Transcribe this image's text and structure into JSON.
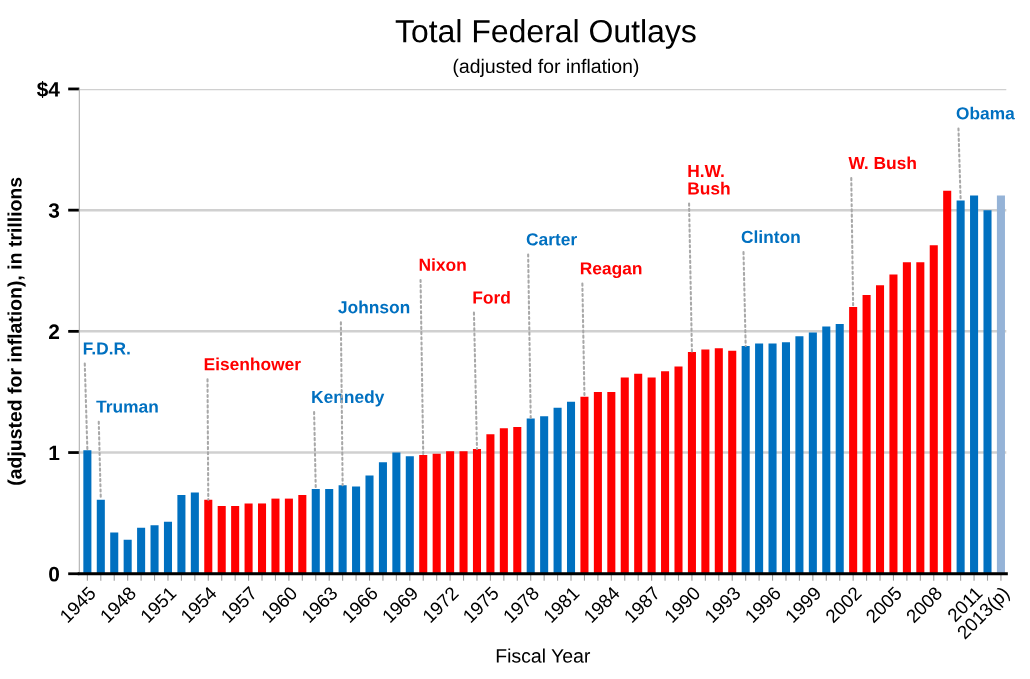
{
  "chart_data": {
    "type": "bar",
    "title": "Total Federal Outlays",
    "subtitle": "(adjusted for inflation)",
    "xlabel": "Fiscal Year",
    "ylabel": "(adjusted for inflation), in trillions",
    "x": [
      1945,
      1946,
      1947,
      1948,
      1949,
      1950,
      1951,
      1952,
      1953,
      1954,
      1955,
      1956,
      1957,
      1958,
      1959,
      1960,
      1961,
      1962,
      1963,
      1964,
      1965,
      1966,
      1967,
      1968,
      1969,
      1970,
      1971,
      1972,
      1973,
      1974,
      1975,
      1976,
      1977,
      1978,
      1979,
      1980,
      1981,
      1982,
      1983,
      1984,
      1985,
      1986,
      1987,
      1988,
      1989,
      1990,
      1991,
      1992,
      1993,
      1994,
      1995,
      1996,
      1997,
      1998,
      1999,
      2000,
      2001,
      2002,
      2003,
      2004,
      2005,
      2006,
      2007,
      2008,
      2009,
      2010,
      2011,
      2012,
      2013
    ],
    "values": [
      1.02,
      0.61,
      0.34,
      0.28,
      0.38,
      0.4,
      0.43,
      0.65,
      0.67,
      0.61,
      0.56,
      0.56,
      0.58,
      0.58,
      0.62,
      0.62,
      0.65,
      0.7,
      0.7,
      0.73,
      0.72,
      0.81,
      0.92,
      1.0,
      0.97,
      0.98,
      0.99,
      1.01,
      1.01,
      1.03,
      1.15,
      1.2,
      1.21,
      1.28,
      1.3,
      1.37,
      1.42,
      1.46,
      1.5,
      1.5,
      1.62,
      1.65,
      1.62,
      1.67,
      1.71,
      1.83,
      1.85,
      1.86,
      1.84,
      1.88,
      1.9,
      1.9,
      1.91,
      1.96,
      1.99,
      2.04,
      2.06,
      2.2,
      2.3,
      2.38,
      2.47,
      2.57,
      2.57,
      2.71,
      3.16,
      3.08,
      3.12,
      3.0,
      3.12
    ],
    "colors": [
      "#0070c0",
      "#0070c0",
      "#0070c0",
      "#0070c0",
      "#0070c0",
      "#0070c0",
      "#0070c0",
      "#0070c0",
      "#0070c0",
      "#ff0000",
      "#ff0000",
      "#ff0000",
      "#ff0000",
      "#ff0000",
      "#ff0000",
      "#ff0000",
      "#ff0000",
      "#0070c0",
      "#0070c0",
      "#0070c0",
      "#0070c0",
      "#0070c0",
      "#0070c0",
      "#0070c0",
      "#0070c0",
      "#ff0000",
      "#ff0000",
      "#ff0000",
      "#ff0000",
      "#ff0000",
      "#ff0000",
      "#ff0000",
      "#ff0000",
      "#0070c0",
      "#0070c0",
      "#0070c0",
      "#0070c0",
      "#ff0000",
      "#ff0000",
      "#ff0000",
      "#ff0000",
      "#ff0000",
      "#ff0000",
      "#ff0000",
      "#ff0000",
      "#ff0000",
      "#ff0000",
      "#ff0000",
      "#ff0000",
      "#0070c0",
      "#0070c0",
      "#0070c0",
      "#0070c0",
      "#0070c0",
      "#0070c0",
      "#0070c0",
      "#0070c0",
      "#ff0000",
      "#ff0000",
      "#ff0000",
      "#ff0000",
      "#ff0000",
      "#ff0000",
      "#ff0000",
      "#ff0000",
      "#0070c0",
      "#0070c0",
      "#0070c0",
      "#95b3d7"
    ],
    "xlim": [
      1944.4,
      2013.4
    ],
    "xticks": [
      1945,
      {
        "value": 1946,
        "label": null
      },
      {
        "value": 1947,
        "label": null
      },
      1948,
      {
        "value": 1949,
        "label": null
      },
      {
        "value": 1950,
        "label": null
      },
      1951,
      {
        "value": 1952,
        "label": null
      },
      {
        "value": 1953,
        "label": null
      },
      1954,
      {
        "value": 1955,
        "label": null
      },
      {
        "value": 1956,
        "label": null
      },
      1957,
      {
        "value": 1958,
        "label": null
      },
      {
        "value": 1959,
        "label": null
      },
      1960,
      {
        "value": 1961,
        "label": null
      },
      {
        "value": 1962,
        "label": null
      },
      1963,
      {
        "value": 1964,
        "label": null
      },
      {
        "value": 1965,
        "label": null
      },
      1966,
      {
        "value": 1967,
        "label": null
      },
      {
        "value": 1968,
        "label": null
      },
      1969,
      {
        "value": 1970,
        "label": null
      },
      {
        "value": 1971,
        "label": null
      },
      1972,
      {
        "value": 1973,
        "label": null
      },
      {
        "value": 1974,
        "label": null
      },
      1975,
      {
        "value": 1976,
        "label": null
      },
      {
        "value": 1977,
        "label": null
      },
      1978,
      {
        "value": 1979,
        "label": null
      },
      {
        "value": 1980,
        "label": null
      },
      1981,
      {
        "value": 1982,
        "label": null
      },
      {
        "value": 1983,
        "label": null
      },
      1984,
      {
        "value": 1985,
        "label": null
      },
      {
        "value": 1986,
        "label": null
      },
      1987,
      {
        "value": 1988,
        "label": null
      },
      {
        "value": 1989,
        "label": null
      },
      1990,
      {
        "value": 1991,
        "label": null
      },
      {
        "value": 1992,
        "label": null
      },
      1993,
      {
        "value": 1994,
        "label": null
      },
      {
        "value": 1995,
        "label": null
      },
      1996,
      {
        "value": 1997,
        "label": null
      },
      {
        "value": 1998,
        "label": null
      },
      1999,
      {
        "value": 2000,
        "label": null
      },
      {
        "value": 2001,
        "label": null
      },
      2002,
      {
        "value": 2003,
        "label": null
      },
      {
        "value": 2004,
        "label": null
      },
      2005,
      {
        "value": 2006,
        "label": null
      },
      {
        "value": 2007,
        "label": null
      },
      2008,
      {
        "value": 2009,
        "label": null
      },
      {
        "value": 2010,
        "label": null
      },
      2011,
      {
        "value": 2012,
        "label": null
      },
      {
        "value": 2013,
        "label": "2013(p)"
      }
    ],
    "ylim": [
      0,
      4
    ],
    "yticks": [
      0,
      1,
      2,
      3,
      {
        "value": 4,
        "label": "$4"
      }
    ],
    "grid": "y",
    "annotations": [
      {
        "text": "F.D.R.",
        "x": 1945,
        "y": 1.02
      },
      {
        "text": "Truman",
        "x": 1946,
        "y": 0.61
      },
      {
        "text": "Eisenhower",
        "x": 1954,
        "y": 0.61
      },
      {
        "text": "Kennedy",
        "x": 1962,
        "y": 0.7
      },
      {
        "text": "Johnson",
        "x": 1964,
        "y": 0.73
      },
      {
        "text": "Nixon",
        "x": 1970,
        "y": 0.98
      },
      {
        "text": "Ford",
        "x": 1974,
        "y": 1.03
      },
      {
        "text": "Carter",
        "x": 1978,
        "y": 1.28
      },
      {
        "text": "Reagan",
        "x": 1982,
        "y": 1.46
      },
      {
        "text": "H.W.\nBush",
        "x": 1990,
        "y": 1.83
      },
      {
        "text": "Clinton",
        "x": 1994,
        "y": 1.88
      },
      {
        "text": "W. Bush",
        "x": 2002,
        "y": 2.2
      },
      {
        "text": "Obama",
        "x": 2010,
        "y": 3.08
      }
    ]
  }
}
